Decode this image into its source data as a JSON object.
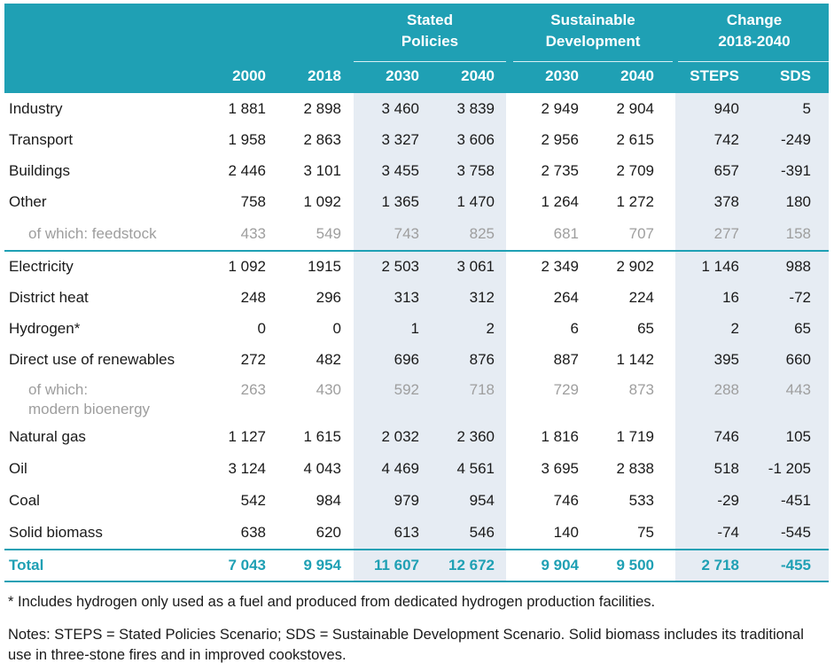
{
  "header": {
    "groups": {
      "stated_policies": "Stated\nPolicies",
      "sustainable_development": "Sustainable\nDevelopment",
      "change": "Change\n2018-2040"
    },
    "columns": [
      "2000",
      "2018",
      "2030",
      "2040",
      "2030",
      "2040",
      "STEPS",
      "SDS"
    ]
  },
  "rows": [
    {
      "label": "Industry",
      "values": [
        "1 881",
        "2 898",
        "3 460",
        "3 839",
        "2 949",
        "2 904",
        "940",
        "5"
      ]
    },
    {
      "label": "Transport",
      "values": [
        "1 958",
        "2 863",
        "3 327",
        "3 606",
        "2 956",
        "2 615",
        "742",
        "-249"
      ]
    },
    {
      "label": "Buildings",
      "values": [
        "2 446",
        "3 101",
        "3 455",
        "3 758",
        "2 735",
        "2 709",
        "657",
        "-391"
      ]
    },
    {
      "label": "Other",
      "values": [
        "758",
        "1 092",
        "1 365",
        "1 470",
        "1 264",
        "1 272",
        "378",
        "180"
      ]
    },
    {
      "label": "of which: feedstock",
      "values": [
        "433",
        "549",
        "743",
        "825",
        "681",
        "707",
        "277",
        "158"
      ]
    },
    {
      "label": "Electricity",
      "values": [
        "1 092",
        "1915",
        "2 503",
        "3 061",
        "2 349",
        "2 902",
        "1 146",
        "988"
      ]
    },
    {
      "label": "District heat",
      "values": [
        "248",
        "296",
        "313",
        "312",
        "264",
        "224",
        "16",
        "-72"
      ]
    },
    {
      "label": "Hydrogen*",
      "values": [
        "0",
        "0",
        "1",
        "2",
        "6",
        "65",
        "2",
        "65"
      ]
    },
    {
      "label": "Direct use of renewables",
      "values": [
        "272",
        "482",
        "696",
        "876",
        "887",
        "1 142",
        "395",
        "660"
      ]
    },
    {
      "label": "of which:\nmodern bioenergy",
      "values": [
        "263",
        "430",
        "592",
        "718",
        "729",
        "873",
        "288",
        "443"
      ]
    },
    {
      "label": "Natural gas",
      "values": [
        "1 127",
        "1 615",
        "2 032",
        "2 360",
        "1 816",
        "1 719",
        "746",
        "105"
      ]
    },
    {
      "label": "Oil",
      "values": [
        "3 124",
        "4 043",
        "4 469",
        "4 561",
        "3 695",
        "2 838",
        "518",
        "-1 205"
      ]
    },
    {
      "label": "Coal",
      "values": [
        "542",
        "984",
        "979",
        "954",
        "746",
        "533",
        "-29",
        "-451"
      ]
    },
    {
      "label": "Solid biomass",
      "values": [
        "638",
        "620",
        "613",
        "546",
        "140",
        "75",
        "-74",
        "-545"
      ]
    }
  ],
  "total": {
    "label": "Total",
    "values": [
      "7 043",
      "9 954",
      "11 607",
      "12 672",
      "9 904",
      "9 500",
      "2 718",
      "-455"
    ]
  },
  "notes": [
    "* Includes hydrogen only used as a fuel and produced from dedicated hydrogen production facilities.",
    "Notes: STEPS = Stated Policies Scenario; SDS = Sustainable Development Scenario. Solid biomass includes its traditional use in three-stone fires and in improved cookstoves."
  ],
  "colors": {
    "header_bg": "#1fa0b4",
    "shade": "#e6ecf3",
    "sub_text": "#9e9e9e",
    "total_text": "#1fa0b4"
  }
}
